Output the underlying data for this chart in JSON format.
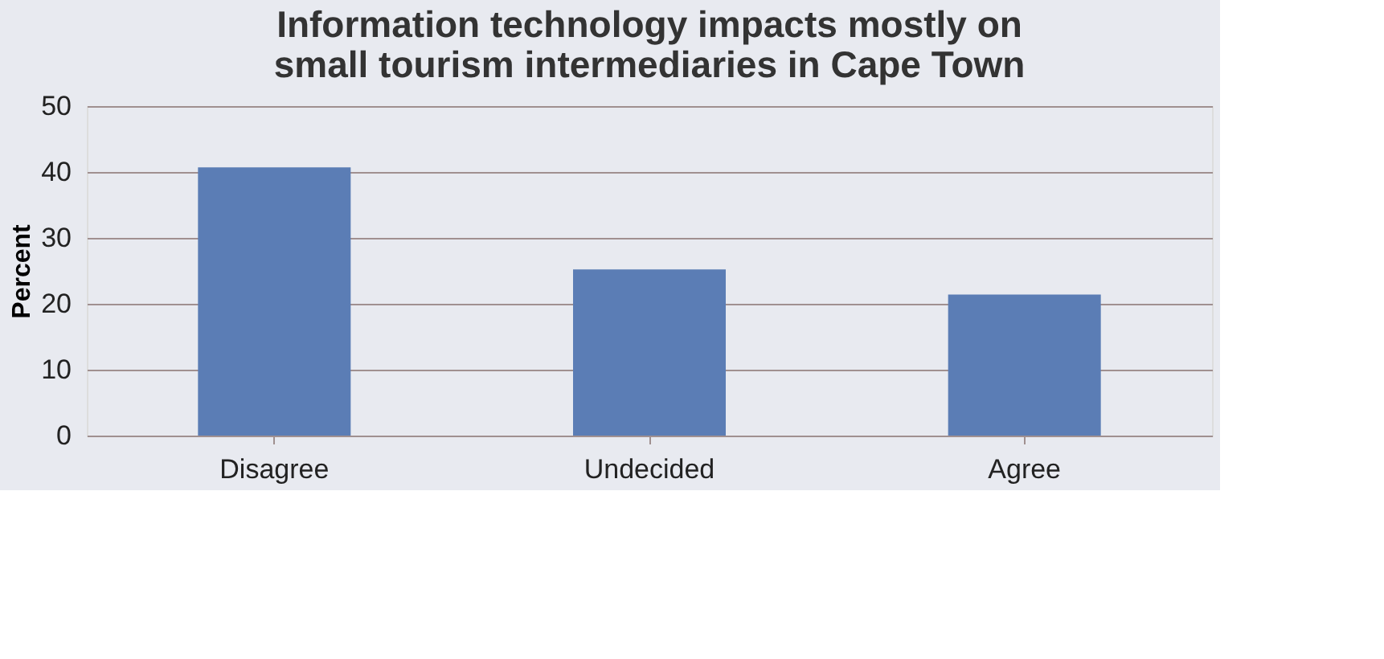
{
  "chart_data": {
    "type": "bar",
    "title": "Information technology impacts mostly on small tourism intermediaries in Cape Town",
    "ylabel": "Percent",
    "categories": [
      "Disagree",
      "Undecided",
      "Agree"
    ],
    "values": [
      40.7,
      25.2,
      21.4
    ],
    "color": "#5b7db5",
    "ylim": [
      0,
      50
    ],
    "yticks": [
      0,
      10,
      20,
      30,
      40,
      50
    ],
    "grid": "y"
  }
}
